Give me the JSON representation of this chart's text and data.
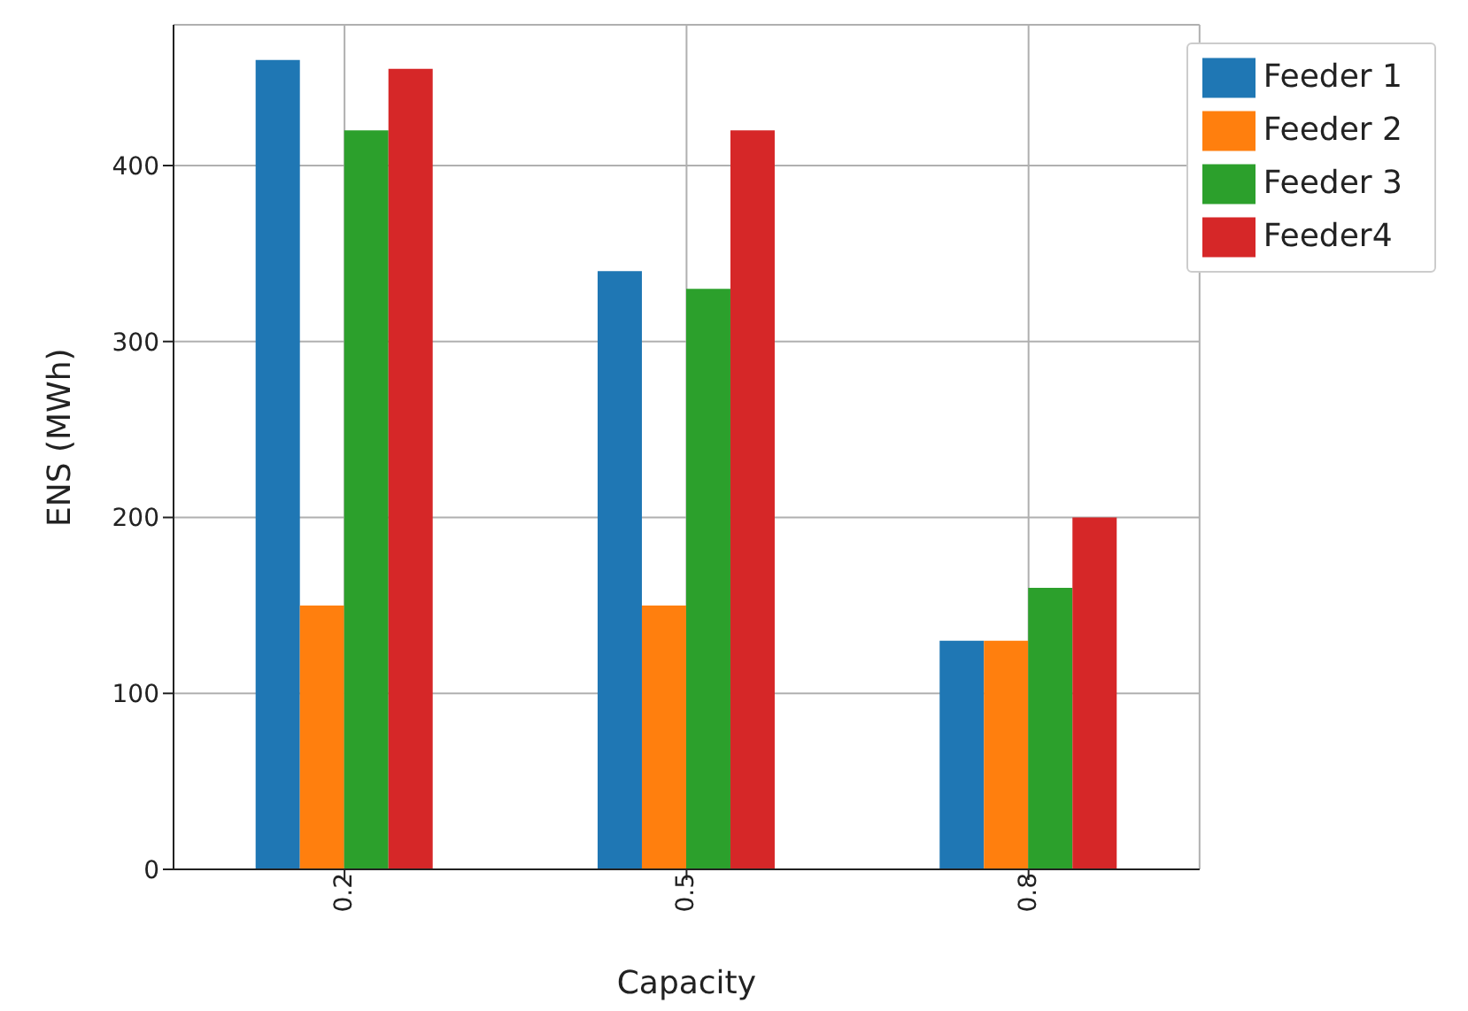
{
  "chart_data": {
    "type": "bar",
    "xlabel": "Capacity",
    "ylabel": "ENS (MWh)",
    "categories": [
      "0.2",
      "0.5",
      "0.8"
    ],
    "series": [
      {
        "name": "Feeder 1",
        "color": "#1f77b4",
        "values": [
          460,
          340,
          130
        ]
      },
      {
        "name": "Feeder 2",
        "color": "#ff7f0e",
        "values": [
          150,
          150,
          130
        ]
      },
      {
        "name": "Feeder 3",
        "color": "#2ca02c",
        "values": [
          420,
          330,
          160
        ]
      },
      {
        "name": "Feeder4",
        "color": "#d62728",
        "values": [
          455,
          420,
          200
        ]
      }
    ],
    "ylim": [
      0,
      480
    ],
    "yticks": [
      0,
      100,
      200,
      300,
      400
    ],
    "grid": true,
    "legend": "top right"
  }
}
